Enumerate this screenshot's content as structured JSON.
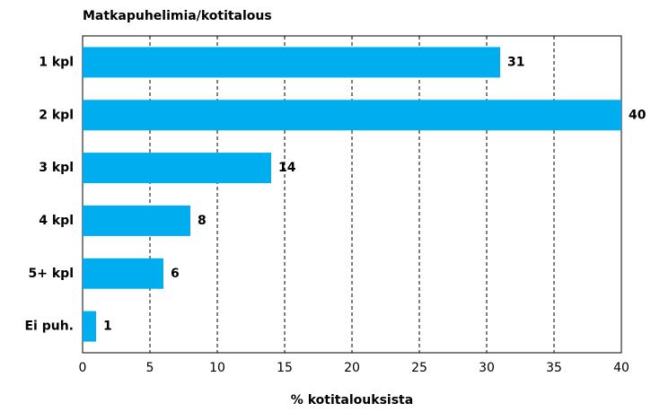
{
  "chart_data": {
    "type": "bar",
    "orientation": "horizontal",
    "title": "Matkapuhelimia/kotitalous",
    "x_label": "% kotitalouksista",
    "categories": [
      "1 kpl",
      "2 kpl",
      "3 kpl",
      "4 kpl",
      "5+ kpl",
      "Ei puh."
    ],
    "values": [
      31,
      40,
      14,
      8,
      6,
      1
    ],
    "color": "#00aeef",
    "xlim": [
      0,
      40
    ],
    "xticks": [
      0,
      5,
      10,
      15,
      20,
      25,
      30,
      35,
      40
    ],
    "grid": true
  }
}
